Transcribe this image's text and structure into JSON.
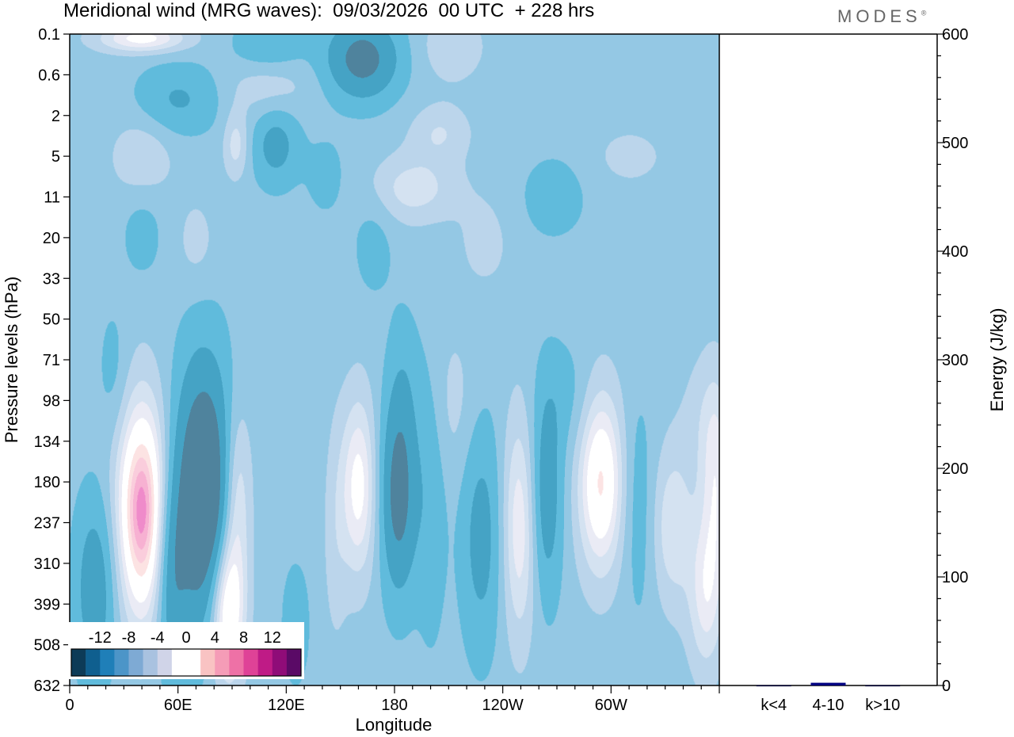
{
  "header": {
    "title": "Meridional wind (MRG waves):  09/03/2026  00 UTC  + 228 hrs",
    "logo": "MODES",
    "logo_mark": "®"
  },
  "chart_data": [
    {
      "type": "heatmap",
      "title": "Meridional wind (MRG waves):  09/03/2026  00 UTC  + 228 hrs",
      "xlabel": "Longitude",
      "ylabel": "Pressure levels (hPa)",
      "x_ticks": [
        "0",
        "60E",
        "120E",
        "180",
        "120W",
        "60W"
      ],
      "x_tick_degrees": [
        0,
        60,
        120,
        180,
        240,
        300
      ],
      "xlim": [
        0,
        360
      ],
      "y_ticks": [
        "0.1",
        "0.6",
        "2",
        "5",
        "11",
        "20",
        "33",
        "50",
        "71",
        "98",
        "134",
        "180",
        "237",
        "310",
        "399",
        "508",
        "632"
      ],
      "colorbar": {
        "labels": [
          "-12",
          "-8",
          "-4",
          "0",
          "4",
          "8",
          "12"
        ],
        "label_values": [
          -12,
          -8,
          -4,
          0,
          4,
          8,
          12
        ],
        "colors": [
          "#0d3b57",
          "#0f5f8f",
          "#1f7fb8",
          "#4c95c8",
          "#7eaad4",
          "#a9c2e0",
          "#d0d4e8",
          "#ffffff",
          "#ffffff",
          "#f9c3c3",
          "#f59cb7",
          "#ee71a6",
          "#df4297",
          "#bf1b86",
          "#8f0c78",
          "#5a0a66"
        ],
        "min": -16,
        "max": 16
      },
      "features": [
        {
          "lon": 40,
          "level": 11.7,
          "value": 13,
          "w": 10,
          "h": 1.9
        },
        {
          "lon": 74,
          "level": 11.3,
          "value": -14,
          "w": 11,
          "h": 2.2
        },
        {
          "lon": 92,
          "level": 11.3,
          "value": 6,
          "w": 6,
          "h": 1.6
        },
        {
          "lon": 87,
          "level": 14.1,
          "value": 10,
          "w": 7,
          "h": 1.3
        },
        {
          "lon": 14,
          "level": 13.6,
          "value": -6,
          "w": 8,
          "h": 1.6
        },
        {
          "lon": 56,
          "level": 13.3,
          "value": -6,
          "w": 6,
          "h": 1.8
        },
        {
          "lon": 160,
          "level": 11.1,
          "value": 7,
          "w": 7,
          "h": 1.6
        },
        {
          "lon": 182,
          "level": 11.3,
          "value": -9,
          "w": 7,
          "h": 1.7
        },
        {
          "lon": 200,
          "level": 11.3,
          "value": -3,
          "w": 6,
          "h": 2.5
        },
        {
          "lon": 228,
          "level": 12.3,
          "value": -5,
          "w": 8,
          "h": 2.0
        },
        {
          "lon": 249,
          "level": 12.1,
          "value": 6,
          "w": 7,
          "h": 2.0
        },
        {
          "lon": 264,
          "level": 11.3,
          "value": -6,
          "w": 6,
          "h": 1.8
        },
        {
          "lon": 294,
          "level": 11.0,
          "value": 9,
          "w": 9,
          "h": 1.6
        },
        {
          "lon": 315,
          "level": 11.6,
          "value": -2.5,
          "w": 6,
          "h": 2.0
        },
        {
          "lon": 334,
          "level": 12.1,
          "value": 4.5,
          "w": 8,
          "h": 1.4
        },
        {
          "lon": 358,
          "level": 11.2,
          "value": 5,
          "w": 6,
          "h": 1.8
        },
        {
          "lon": 352,
          "level": 13.8,
          "value": 5,
          "w": 7,
          "h": 1.4
        },
        {
          "lon": 24,
          "level": 8.3,
          "value": -2,
          "w": 6,
          "h": 1.2
        },
        {
          "lon": 185,
          "level": 8.6,
          "value": -2,
          "w": 6,
          "h": 1.4
        },
        {
          "lon": 212,
          "level": 9.1,
          "value": 2,
          "w": 10,
          "h": 1.4
        },
        {
          "lon": 147,
          "level": 12.3,
          "value": 2,
          "w": 5,
          "h": 2.0
        },
        {
          "lon": 125,
          "level": 14.5,
          "value": -3,
          "w": 5,
          "h": 1.0
        },
        {
          "lon": 352,
          "level": 9.4,
          "value": 2,
          "w": 10,
          "h": 1.2
        },
        {
          "lon": 275,
          "level": 8.9,
          "value": -2,
          "w": 10,
          "h": 1.0
        },
        {
          "lon": 40,
          "level": 0.1,
          "value": 7,
          "w": 18,
          "h": 0.25
        },
        {
          "lon": 110,
          "level": 0.3,
          "value": -4,
          "w": 14,
          "h": 0.5
        },
        {
          "lon": 162,
          "level": 0.6,
          "value": -9,
          "w": 14,
          "h": 0.7
        },
        {
          "lon": 212,
          "level": 0.3,
          "value": 3,
          "w": 12,
          "h": 0.6
        },
        {
          "lon": 110,
          "level": 1.2,
          "value": 3,
          "w": 16,
          "h": 0.6
        },
        {
          "lon": 60,
          "level": 1.6,
          "value": -4,
          "w": 16,
          "h": 0.6
        },
        {
          "lon": 40,
          "level": 3.0,
          "value": 3,
          "w": 12,
          "h": 0.7
        },
        {
          "lon": 114,
          "level": 2.7,
          "value": -5,
          "w": 9,
          "h": 0.7
        },
        {
          "lon": 92,
          "level": 2.7,
          "value": 4,
          "w": 5,
          "h": 0.6
        },
        {
          "lon": 190,
          "level": 3.8,
          "value": 4,
          "w": 18,
          "h": 0.6
        },
        {
          "lon": 142,
          "level": 3.5,
          "value": -2,
          "w": 8,
          "h": 0.7
        },
        {
          "lon": 205,
          "level": 2.4,
          "value": 3,
          "w": 12,
          "h": 0.5
        },
        {
          "lon": 268,
          "level": 4.0,
          "value": -2,
          "w": 14,
          "h": 0.8
        },
        {
          "lon": 310,
          "level": 3.0,
          "value": 2,
          "w": 14,
          "h": 0.5
        },
        {
          "lon": 168,
          "level": 5.1,
          "value": -2,
          "w": 8,
          "h": 1.0
        },
        {
          "lon": 230,
          "level": 5.1,
          "value": 2,
          "w": 10,
          "h": 0.8
        },
        {
          "lon": 40,
          "level": 4.9,
          "value": -2,
          "w": 8,
          "h": 0.8
        },
        {
          "lon": 70,
          "level": 5.1,
          "value": 2,
          "w": 8,
          "h": 0.8
        }
      ]
    },
    {
      "type": "bar",
      "ylabel": "Energy (J/kg)",
      "ylim": [
        0,
        600
      ],
      "y_ticks": [
        0,
        100,
        200,
        300,
        400,
        500,
        600
      ],
      "categories": [
        "k<4",
        "4-10",
        "k>10"
      ],
      "values": [
        0.3,
        2.5,
        0.3
      ],
      "bar_colors": [
        "#000033",
        "#000080",
        "#000033"
      ]
    }
  ]
}
